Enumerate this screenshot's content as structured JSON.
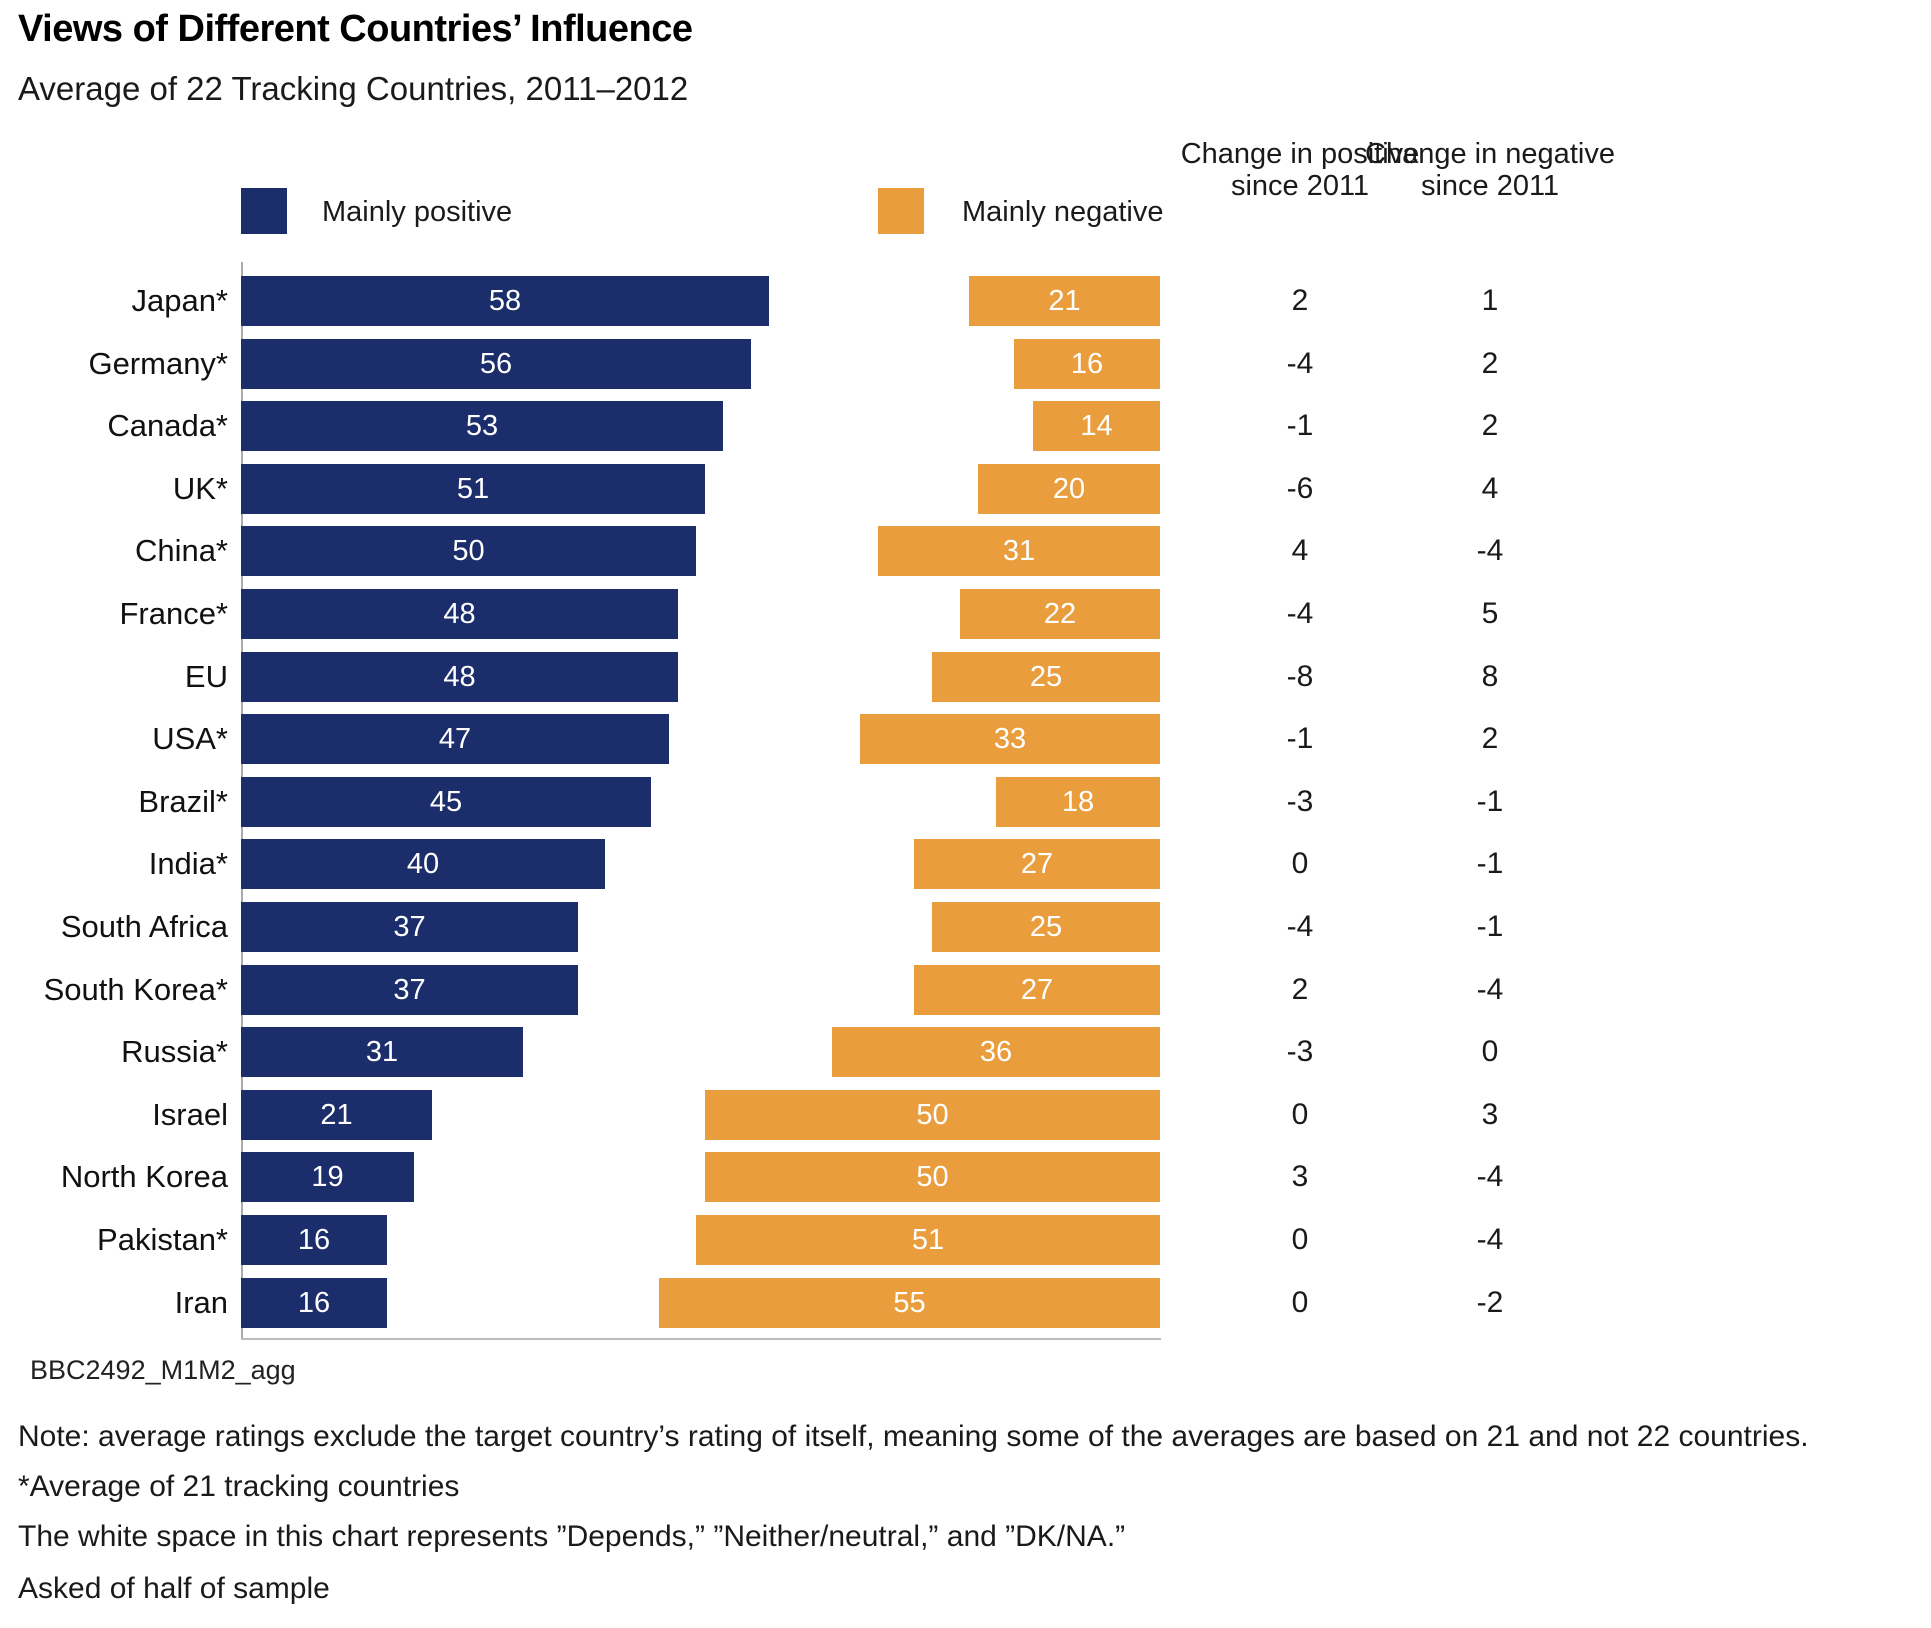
{
  "title": "Views of Different Countries’ Influence",
  "subtitle": "Average of 22 Tracking Countries, 2011–2012",
  "legend": {
    "positive": "Mainly positive",
    "negative": "Mainly negative"
  },
  "col_headers": {
    "positive_change": "Change in positive since 2011",
    "negative_change": "Change in negative since 2011"
  },
  "source_label": "BBC2492_M1M2_agg",
  "notes": [
    "Note: average ratings exclude the target country’s rating of itself, meaning some of the averages are based on 21 and not 22 countries.",
    "*Average of 21 tracking countries",
    "The white space in this chart represents ”Depends,” ”Neither/neutral,” and ”DK/NA.”",
    "Asked of half of sample"
  ],
  "colors": {
    "positive": "#1b2d6b",
    "negative": "#ea9d3c",
    "axis": "#b0b0b0"
  },
  "chart_data": {
    "type": "bar",
    "orientation": "horizontal",
    "unit": "percent",
    "title": "Views of Different Countries’ Influence",
    "subtitle": "Average of 22 Tracking Countries, 2011–2012",
    "legend_position": "top",
    "grid": false,
    "xlim": [
      0,
      60
    ],
    "categories": [
      "Japan*",
      "Germany*",
      "Canada*",
      "UK*",
      "China*",
      "France*",
      "EU",
      "USA*",
      "Brazil*",
      "India*",
      "South Africa",
      "South Korea*",
      "Russia*",
      "Israel",
      "North Korea",
      "Pakistan*",
      "Iran"
    ],
    "series": [
      {
        "name": "Mainly positive",
        "values": [
          58,
          56,
          53,
          51,
          50,
          48,
          48,
          47,
          45,
          40,
          37,
          37,
          31,
          21,
          19,
          16,
          16
        ]
      },
      {
        "name": "Mainly negative",
        "values": [
          21,
          16,
          14,
          20,
          31,
          22,
          25,
          33,
          18,
          27,
          25,
          27,
          36,
          50,
          50,
          51,
          55
        ]
      },
      {
        "name": "Change in positive since 2011",
        "values": [
          2,
          -4,
          -1,
          -6,
          4,
          -4,
          -8,
          -1,
          -3,
          0,
          -4,
          2,
          -3,
          0,
          3,
          0,
          0
        ]
      },
      {
        "name": "Change in negative since 2011",
        "values": [
          1,
          2,
          2,
          4,
          -4,
          5,
          8,
          2,
          -1,
          -1,
          -1,
          -4,
          0,
          3,
          -4,
          -4,
          -2
        ]
      }
    ]
  }
}
